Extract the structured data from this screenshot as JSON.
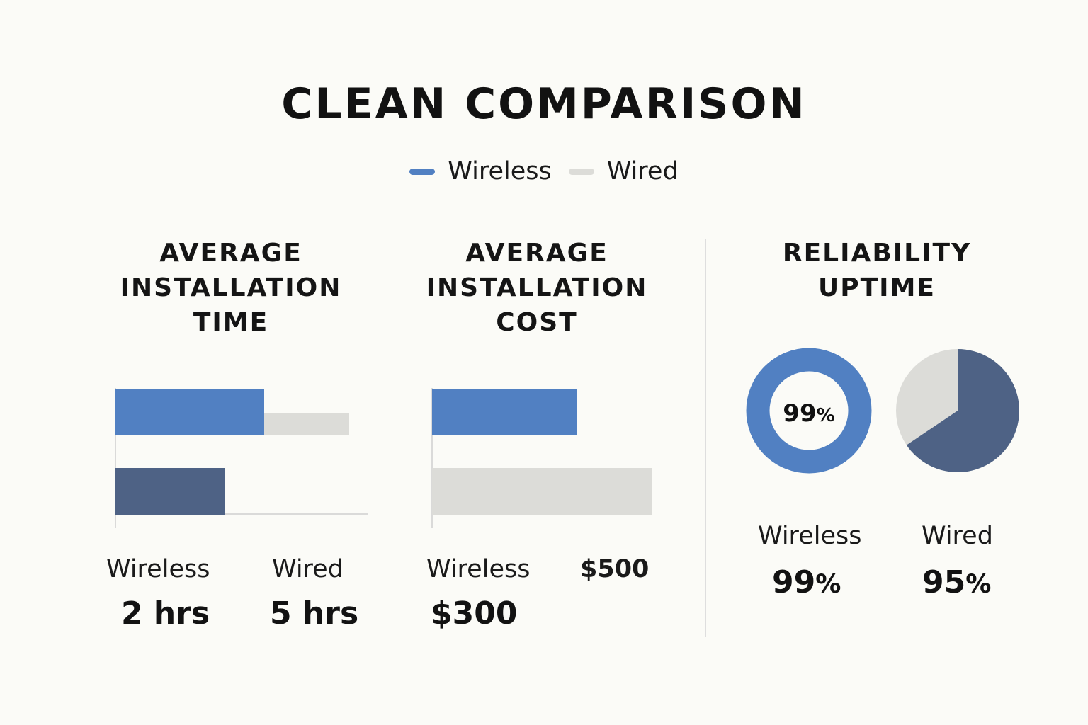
{
  "title": "CLEAN COMPARISON",
  "legend": [
    {
      "label": "Wireless",
      "color": "#5180c2"
    },
    {
      "label": "Wired",
      "color": "#dcdcd8"
    }
  ],
  "colors": {
    "wireless": "#5180c2",
    "wireless_dark": "#4e6285",
    "wired": "#dcdcd8",
    "axis": "#cfcfcf"
  },
  "panels": {
    "time": {
      "title_lines": [
        "AVERAGE",
        "INSTALLATION",
        "TIME"
      ],
      "wireless_label": "Wireless",
      "wired_label": "Wired",
      "wireless_value": "2 hrs",
      "wired_value": "5 hrs"
    },
    "cost": {
      "title_lines": [
        "AVERAGE",
        "INSTALLATION",
        "COST"
      ],
      "wireless_label": "Wireless",
      "wired_value": "$500",
      "wireless_value": "$300"
    },
    "uptime": {
      "title_lines": [
        "RELIABILITY",
        "UPTIME"
      ],
      "donut_label": "99",
      "donut_unit": "%",
      "wireless_label": "Wireless",
      "wired_label": "Wired",
      "wireless_value": "99",
      "wired_value": "95",
      "unit": "%"
    }
  },
  "chart_data": [
    {
      "type": "bar",
      "title": "AVERAGE INSTALLATION TIME",
      "categories": [
        "Wireless",
        "Wired"
      ],
      "series": [
        {
          "name": "Wireless",
          "values": [
            2,
            5
          ]
        }
      ],
      "unit": "hrs"
    },
    {
      "type": "bar",
      "title": "AVERAGE INSTALLATION COST",
      "categories": [
        "Wireless",
        "Wired"
      ],
      "series": [
        {
          "name": "Wireless",
          "values": [
            300,
            500
          ]
        }
      ],
      "unit": "$"
    },
    {
      "type": "pie",
      "title": "RELIABILITY UPTIME",
      "categories": [
        "Wireless",
        "Wired"
      ],
      "values": [
        99,
        95
      ],
      "unit": "%"
    }
  ]
}
